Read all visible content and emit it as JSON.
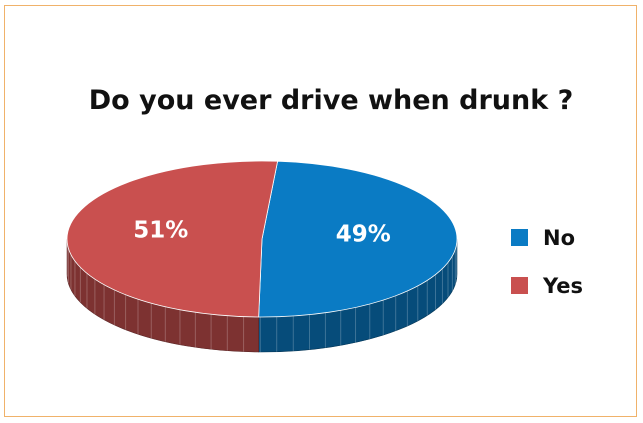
{
  "chart_data": {
    "type": "pie",
    "title": "Do you ever drive when drunk  ?",
    "slices": [
      {
        "name": "No",
        "value": 49,
        "label": "49%",
        "color": "#0a7bc4"
      },
      {
        "name": "Yes",
        "value": 51,
        "label": "51%",
        "color": "#c9504f"
      }
    ],
    "legend_position": "right",
    "three_d": true
  }
}
